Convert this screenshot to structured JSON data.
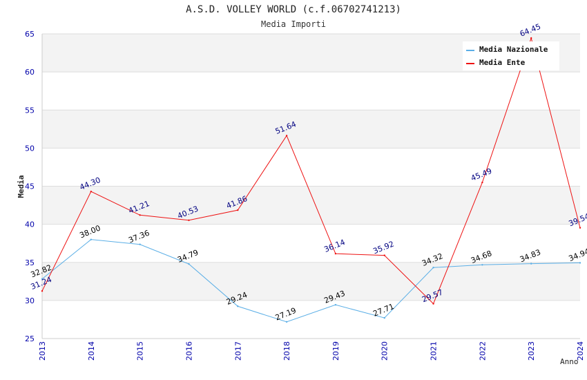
{
  "chart_data": {
    "type": "line",
    "title": "A.S.D. VOLLEY WORLD (c.f.06702741213)",
    "subtitle": "Media Importi",
    "xlabel": "Anno",
    "ylabel": "Media",
    "ylim": [
      25,
      65
    ],
    "yticks": [
      25,
      30,
      35,
      40,
      45,
      50,
      55,
      60,
      65
    ],
    "categories": [
      "2013",
      "2014",
      "2015",
      "2016",
      "2017",
      "2018",
      "2019",
      "2020",
      "2021",
      "2022",
      "2023",
      "2024"
    ],
    "legend_position": "top-right",
    "series": [
      {
        "name": "Media Nazionale",
        "color": "#5aaee6",
        "label_color": "#000000",
        "values": [
          32.82,
          38.0,
          37.36,
          34.79,
          29.24,
          27.19,
          29.43,
          27.71,
          34.32,
          34.68,
          34.83,
          34.94
        ],
        "labels": [
          "32.82",
          "38.00",
          "37.36",
          "34.79",
          "29.24",
          "27.19",
          "29.43",
          "27.71",
          "34.32",
          "34.68",
          "34.83",
          "34.94"
        ]
      },
      {
        "name": "Media Ente",
        "color": "#ee1111",
        "label_color": "#000080",
        "values": [
          31.24,
          44.3,
          41.21,
          40.53,
          41.86,
          51.64,
          36.14,
          35.92,
          29.57,
          45.49,
          64.45,
          39.54
        ],
        "labels": [
          "31.24",
          "44.30",
          "41.21",
          "40.53",
          "41.86",
          "51.64",
          "36.14",
          "35.92",
          "29.57",
          "45.49",
          "64.45",
          "39.54"
        ]
      }
    ],
    "grid": true,
    "band_colors": [
      "#f3f3f3",
      "#ffffff"
    ],
    "axis_text_color": "#0000aa"
  }
}
